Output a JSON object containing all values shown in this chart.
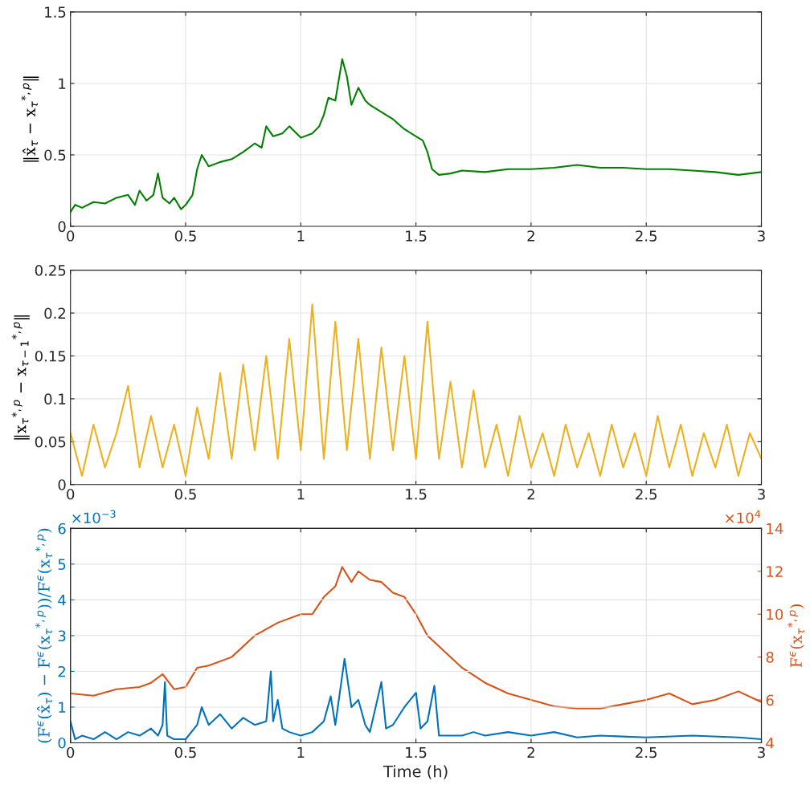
{
  "chart_data": [
    {
      "type": "line",
      "ylabel": "‖x̂$_{τ}$ − x$_{τ}$$^{*,p}$‖",
      "xlim": [
        0,
        3
      ],
      "xticks": [
        0,
        0.5,
        1,
        1.5,
        2,
        2.5,
        3
      ],
      "ylim": [
        0,
        1.5
      ],
      "yticks": [
        0,
        0.5,
        1,
        1.5
      ],
      "grid": true,
      "series": [
        {
          "color": "#008000",
          "x": [
            0,
            0.02,
            0.05,
            0.1,
            0.15,
            0.2,
            0.25,
            0.28,
            0.3,
            0.33,
            0.36,
            0.38,
            0.4,
            0.43,
            0.45,
            0.48,
            0.5,
            0.53,
            0.55,
            0.57,
            0.6,
            0.65,
            0.7,
            0.75,
            0.8,
            0.83,
            0.85,
            0.88,
            0.92,
            0.95,
            1.0,
            1.05,
            1.08,
            1.1,
            1.12,
            1.15,
            1.18,
            1.2,
            1.22,
            1.25,
            1.28,
            1.3,
            1.35,
            1.4,
            1.45,
            1.5,
            1.53,
            1.55,
            1.57,
            1.6,
            1.65,
            1.7,
            1.8,
            1.9,
            2.0,
            2.1,
            2.2,
            2.3,
            2.4,
            2.5,
            2.6,
            2.7,
            2.8,
            2.9,
            3.0
          ],
          "values": [
            0.1,
            0.15,
            0.13,
            0.17,
            0.16,
            0.2,
            0.22,
            0.15,
            0.25,
            0.18,
            0.22,
            0.37,
            0.2,
            0.16,
            0.2,
            0.12,
            0.15,
            0.22,
            0.4,
            0.5,
            0.42,
            0.45,
            0.47,
            0.52,
            0.58,
            0.55,
            0.7,
            0.63,
            0.65,
            0.7,
            0.62,
            0.65,
            0.7,
            0.78,
            0.9,
            0.88,
            1.17,
            1.05,
            0.85,
            0.97,
            0.88,
            0.85,
            0.8,
            0.75,
            0.68,
            0.63,
            0.6,
            0.52,
            0.4,
            0.36,
            0.37,
            0.39,
            0.38,
            0.4,
            0.4,
            0.41,
            0.43,
            0.41,
            0.41,
            0.4,
            0.4,
            0.39,
            0.38,
            0.36,
            0.38
          ]
        }
      ]
    },
    {
      "type": "line",
      "ylabel": "‖x$_{τ}$$^{*,p}$ − x$_{τ−1}$$^{*,p}$‖",
      "xlim": [
        0,
        3
      ],
      "xticks": [
        0,
        0.5,
        1,
        1.5,
        2,
        2.5,
        3
      ],
      "ylim": [
        0,
        0.25
      ],
      "yticks": [
        0,
        0.05,
        0.1,
        0.15,
        0.2,
        0.25
      ],
      "grid": true,
      "series": [
        {
          "color": "#edb120",
          "x": [
            0,
            0.05,
            0.1,
            0.15,
            0.2,
            0.25,
            0.3,
            0.35,
            0.4,
            0.45,
            0.5,
            0.55,
            0.6,
            0.65,
            0.7,
            0.75,
            0.8,
            0.85,
            0.9,
            0.95,
            1.0,
            1.05,
            1.1,
            1.15,
            1.2,
            1.25,
            1.3,
            1.35,
            1.4,
            1.45,
            1.5,
            1.55,
            1.6,
            1.65,
            1.7,
            1.75,
            1.8,
            1.85,
            1.9,
            1.95,
            2.0,
            2.05,
            2.1,
            2.15,
            2.2,
            2.25,
            2.3,
            2.35,
            2.4,
            2.45,
            2.5,
            2.55,
            2.6,
            2.65,
            2.7,
            2.75,
            2.8,
            2.85,
            2.9,
            2.95,
            3.0
          ],
          "values": [
            0.06,
            0.01,
            0.07,
            0.02,
            0.06,
            0.115,
            0.02,
            0.08,
            0.02,
            0.07,
            0.01,
            0.09,
            0.03,
            0.13,
            0.03,
            0.14,
            0.04,
            0.15,
            0.03,
            0.17,
            0.04,
            0.21,
            0.03,
            0.19,
            0.04,
            0.17,
            0.03,
            0.16,
            0.04,
            0.15,
            0.03,
            0.19,
            0.03,
            0.12,
            0.02,
            0.11,
            0.02,
            0.07,
            0.01,
            0.08,
            0.02,
            0.06,
            0.01,
            0.07,
            0.02,
            0.06,
            0.01,
            0.07,
            0.02,
            0.06,
            0.01,
            0.08,
            0.02,
            0.07,
            0.01,
            0.06,
            0.02,
            0.07,
            0.01,
            0.06,
            0.03
          ]
        }
      ]
    },
    {
      "type": "line",
      "xlabel": "Time (h)",
      "ylabel": "(F$^{ϵ}$(x̂$_{τ}$) − F$^{ϵ}$(x$_{τ}$$^{*,p}$))/F$^{ϵ}$(x$_{τ}$$^{*,p}$)",
      "y2label": "F$^{ϵ}$(x$_{τ}$$^{*,p}$)",
      "annotations": [
        "×10$^{−3}$",
        "×10$^{4}$"
      ],
      "xlim": [
        0,
        3
      ],
      "xticks": [
        0,
        0.5,
        1,
        1.5,
        2,
        2.5,
        3
      ],
      "ylim": [
        0,
        6
      ],
      "yticks": [
        0,
        1,
        2,
        3,
        4,
        5,
        6
      ],
      "y2lim": [
        4,
        14
      ],
      "y2ticks": [
        4,
        6,
        8,
        10,
        12,
        14
      ],
      "grid": true,
      "series": [
        {
          "color": "#d95319",
          "axis": "y2",
          "x": [
            0,
            0.1,
            0.2,
            0.3,
            0.35,
            0.4,
            0.45,
            0.5,
            0.55,
            0.6,
            0.7,
            0.8,
            0.9,
            1.0,
            1.05,
            1.1,
            1.15,
            1.18,
            1.22,
            1.25,
            1.3,
            1.35,
            1.4,
            1.45,
            1.5,
            1.55,
            1.6,
            1.7,
            1.8,
            1.9,
            2.0,
            2.1,
            2.2,
            2.3,
            2.4,
            2.5,
            2.6,
            2.7,
            2.8,
            2.9,
            3.0
          ],
          "values": [
            6.3,
            6.2,
            6.5,
            6.6,
            6.8,
            7.2,
            6.5,
            6.6,
            7.5,
            7.6,
            8.0,
            9.0,
            9.6,
            10.0,
            10.0,
            10.8,
            11.3,
            12.2,
            11.5,
            12.0,
            11.6,
            11.5,
            11.0,
            10.8,
            10.0,
            9.0,
            8.5,
            7.5,
            6.8,
            6.3,
            6.0,
            5.7,
            5.6,
            5.6,
            5.8,
            6.0,
            6.3,
            5.8,
            6.0,
            6.4,
            5.9
          ]
        },
        {
          "color": "#0072bd",
          "x": [
            0,
            0.02,
            0.05,
            0.1,
            0.15,
            0.2,
            0.25,
            0.3,
            0.35,
            0.38,
            0.4,
            0.41,
            0.42,
            0.45,
            0.5,
            0.55,
            0.57,
            0.6,
            0.65,
            0.7,
            0.75,
            0.8,
            0.85,
            0.87,
            0.88,
            0.9,
            0.92,
            0.95,
            1.0,
            1.05,
            1.1,
            1.13,
            1.15,
            1.19,
            1.22,
            1.25,
            1.28,
            1.3,
            1.35,
            1.37,
            1.4,
            1.45,
            1.5,
            1.52,
            1.55,
            1.58,
            1.6,
            1.7,
            1.75,
            1.8,
            1.9,
            2.0,
            2.1,
            2.2,
            2.3,
            2.5,
            2.7,
            2.9,
            3.0
          ],
          "values": [
            0.6,
            0.1,
            0.2,
            0.1,
            0.3,
            0.1,
            0.3,
            0.2,
            0.4,
            0.2,
            0.5,
            1.7,
            0.2,
            0.1,
            0.1,
            0.5,
            1.0,
            0.5,
            0.8,
            0.4,
            0.7,
            0.5,
            0.6,
            2.0,
            0.6,
            1.2,
            0.4,
            0.3,
            0.2,
            0.3,
            0.6,
            1.3,
            0.5,
            2.35,
            1.0,
            1.2,
            0.5,
            0.3,
            1.7,
            0.4,
            0.5,
            1.0,
            1.4,
            0.4,
            0.6,
            1.6,
            0.2,
            0.2,
            0.3,
            0.2,
            0.3,
            0.2,
            0.3,
            0.15,
            0.2,
            0.15,
            0.2,
            0.15,
            0.1
          ]
        }
      ]
    }
  ]
}
